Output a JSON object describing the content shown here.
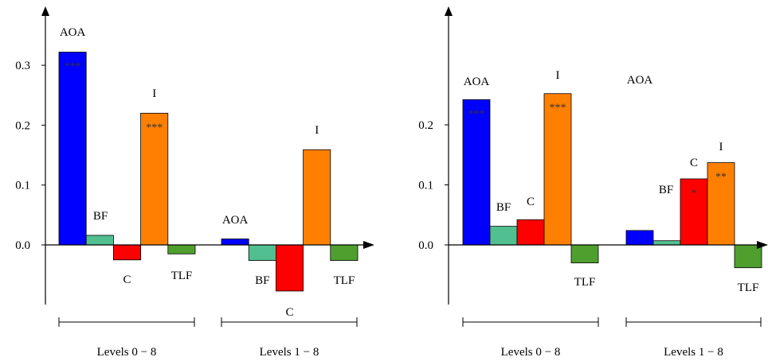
{
  "chart_data": [
    {
      "type": "bar",
      "categories": [
        "AOA",
        "BF",
        "C",
        "I",
        "TLF"
      ],
      "colors": {
        "AOA": "#0000ff",
        "BF": "#52bf90",
        "C": "#ff0000",
        "I": "#ff8000",
        "TLF": "#4f9f2f"
      },
      "yticks": [
        "0.0",
        "0.1",
        "0.2",
        "0.3"
      ],
      "ytick_values": [
        0.0,
        0.1,
        0.2,
        0.3
      ],
      "ylim": [
        -0.1,
        0.42
      ],
      "groups": [
        {
          "label": "Levels 0 − 8",
          "bars": [
            {
              "category": "AOA",
              "value": 0.322,
              "label": "AOA",
              "sig": "***"
            },
            {
              "category": "BF",
              "value": 0.016,
              "label": "BF",
              "sig": ""
            },
            {
              "category": "C",
              "value": -0.025,
              "label": "C",
              "sig": ""
            },
            {
              "category": "I",
              "value": 0.22,
              "label": "I",
              "sig": "***"
            },
            {
              "category": "TLF",
              "value": -0.015,
              "label": "TLF",
              "sig": ""
            }
          ]
        },
        {
          "label": "Levels 1 − 8",
          "bars": [
            {
              "category": "AOA",
              "value": 0.01,
              "label": "AOA",
              "sig": ""
            },
            {
              "category": "BF",
              "value": -0.026,
              "label": "BF",
              "sig": ""
            },
            {
              "category": "C",
              "value": -0.077,
              "label": "C",
              "sig": ""
            },
            {
              "category": "I",
              "value": 0.159,
              "label": "I",
              "sig": ""
            },
            {
              "category": "TLF",
              "value": -0.026,
              "label": "TLF",
              "sig": ""
            }
          ]
        }
      ]
    },
    {
      "type": "bar",
      "categories": [
        "AOA",
        "BF",
        "C",
        "I",
        "TLF"
      ],
      "colors": {
        "AOA": "#0000ff",
        "BF": "#52bf90",
        "C": "#ff0000",
        "I": "#ff8000",
        "TLF": "#4f9f2f"
      },
      "yticks": [
        "0.0",
        "0.1",
        "0.2"
      ],
      "ytick_values": [
        0.0,
        0.1,
        0.2
      ],
      "ylim": [
        -0.1,
        0.4
      ],
      "groups": [
        {
          "label": "Levels 0 − 8",
          "bars": [
            {
              "category": "AOA",
              "value": 0.242,
              "label": "AOA",
              "sig": "***"
            },
            {
              "category": "BF",
              "value": 0.031,
              "label": "BF",
              "sig": ""
            },
            {
              "category": "C",
              "value": 0.042,
              "label": "C",
              "sig": ""
            },
            {
              "category": "I",
              "value": 0.252,
              "label": "I",
              "sig": "***"
            },
            {
              "category": "TLF",
              "value": -0.03,
              "label": "TLF",
              "sig": ""
            }
          ]
        },
        {
          "label": "Levels 1 − 8",
          "bars": [
            {
              "category": "AOA",
              "value": 0.024,
              "label": "AOA",
              "sig": ""
            },
            {
              "category": "BF",
              "value": 0.007,
              "label": "BF",
              "sig": ""
            },
            {
              "category": "C",
              "value": 0.11,
              "label": "C",
              "sig": "*"
            },
            {
              "category": "I",
              "value": 0.137,
              "label": "I",
              "sig": "**"
            },
            {
              "category": "TLF",
              "value": -0.038,
              "label": "TLF",
              "sig": ""
            }
          ]
        }
      ]
    }
  ]
}
